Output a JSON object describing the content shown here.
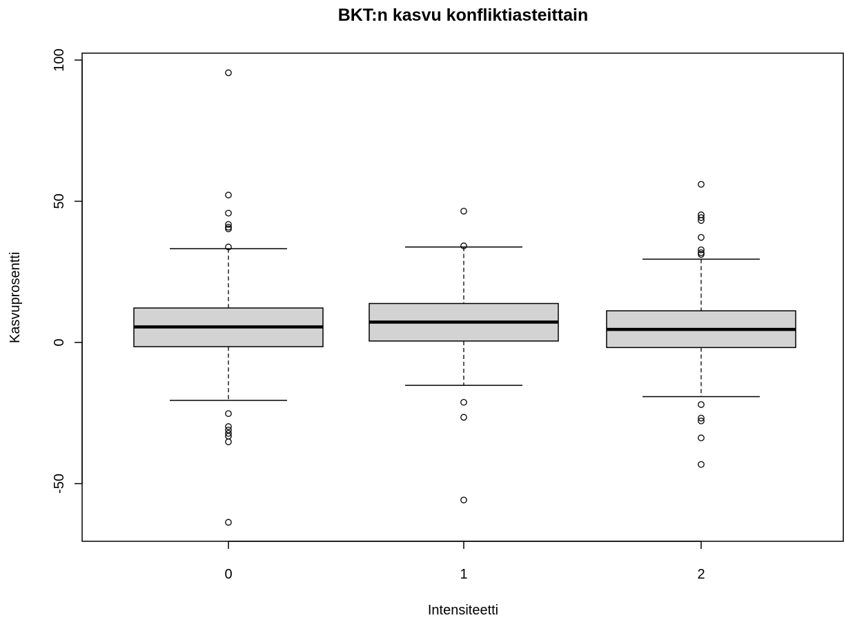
{
  "chart_data": {
    "type": "boxplot",
    "title": "BKT:n kasvu konfliktiasteittain",
    "xlabel": "Intensiteetti",
    "ylabel": "Kasvuprosentti",
    "categories": [
      "0",
      "1",
      "2"
    ],
    "ylim": [
      -70,
      100
    ],
    "yticks": [
      -50,
      0,
      50,
      100
    ],
    "grid": false,
    "colors": {
      "box_fill": "#d3d3d3",
      "stroke": "#000000",
      "background": "#ffffff"
    },
    "boxes": [
      {
        "category": "0",
        "whisker_low": -20.5,
        "q1": -1.5,
        "median": 5.5,
        "q3": 12.2,
        "whisker_high": 33.2,
        "outliers": [
          95.5,
          52.2,
          45.8,
          41.8,
          40.8,
          40.2,
          33.8,
          -25.2,
          -29.8,
          -31.0,
          -32.2,
          -33.2,
          -35.2,
          -63.7
        ]
      },
      {
        "category": "1",
        "whisker_low": -15.2,
        "q1": 0.5,
        "median": 7.2,
        "q3": 13.8,
        "whisker_high": 33.8,
        "outliers": [
          46.5,
          34.2,
          -21.2,
          -26.5,
          -55.8
        ]
      },
      {
        "category": "2",
        "whisker_low": -19.2,
        "q1": -1.8,
        "median": 4.6,
        "q3": 11.2,
        "whisker_high": 29.5,
        "outliers": [
          56.0,
          45.2,
          44.2,
          43.2,
          37.2,
          32.8,
          31.8,
          31.2,
          -22.0,
          -26.8,
          -27.8,
          -33.8,
          -43.2
        ]
      }
    ]
  }
}
